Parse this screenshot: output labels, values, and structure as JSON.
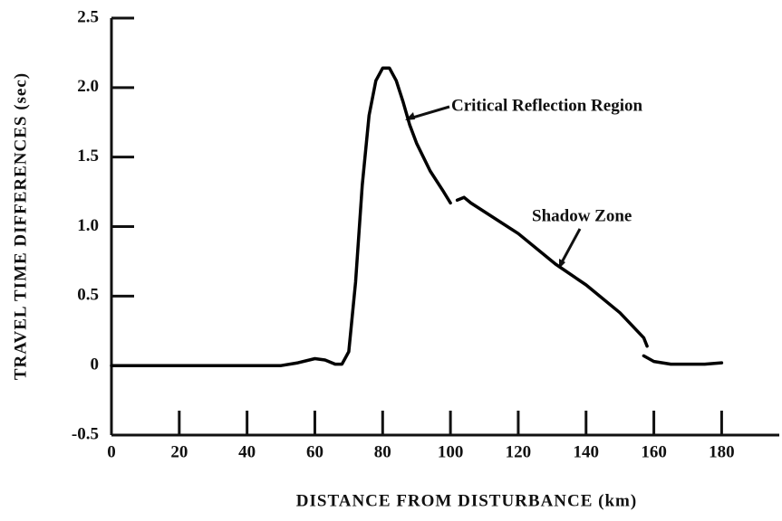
{
  "chart_data": {
    "type": "line",
    "ylabel": "TRAVEL TIME DIFFERENCES (sec)",
    "xlabel": "DISTANCE FROM DISTURBANCE (km)",
    "annotations": [
      "Critical Reflection Region",
      "Shadow Zone"
    ],
    "x": [
      0,
      50,
      55,
      60,
      63,
      66,
      68,
      70,
      72,
      74,
      76,
      78,
      80,
      82,
      84,
      86,
      88,
      90,
      94,
      98,
      100,
      101,
      102,
      104,
      106,
      120,
      131,
      140,
      150,
      157,
      158,
      158.5,
      157,
      160,
      165,
      170,
      175,
      180
    ],
    "values": [
      0,
      0,
      0.02,
      0.05,
      0.04,
      0.01,
      0.01,
      0.1,
      0.6,
      1.3,
      1.8,
      2.05,
      2.14,
      2.14,
      2.05,
      1.9,
      1.73,
      1.6,
      1.4,
      1.25,
      1.17,
      null,
      1.19,
      1.21,
      1.17,
      0.95,
      0.73,
      0.58,
      0.38,
      0.2,
      0.14,
      null,
      0.07,
      0.03,
      0.01,
      0.01,
      0.01,
      0.02
    ],
    "color": "#000000",
    "xlim": [
      0,
      197
    ],
    "ylim": [
      -0.5,
      2.5
    ],
    "xticks": [
      0,
      20,
      40,
      60,
      80,
      100,
      120,
      140,
      160,
      180
    ],
    "yticks": [
      -0.5,
      0,
      0.5,
      {
        "value": 1,
        "label": "1.0"
      },
      1.5,
      {
        "value": 2,
        "label": "2.0"
      },
      2.5
    ]
  }
}
